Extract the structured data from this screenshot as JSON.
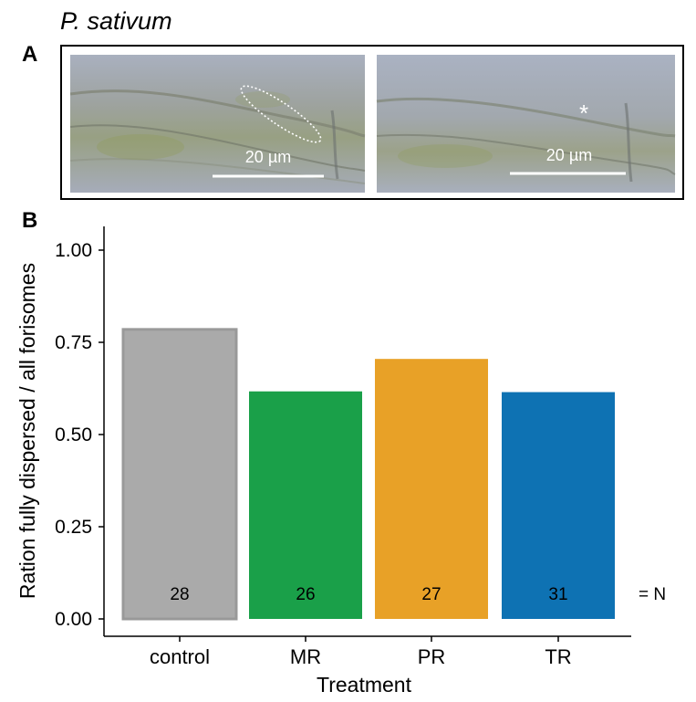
{
  "header": {
    "species": "P. sativum",
    "panel_a": "A",
    "panel_b": "B"
  },
  "micrographs": [
    {
      "scalebar_label": "20 µm",
      "annotation": ""
    },
    {
      "scalebar_label": "20 µm",
      "annotation": "*"
    }
  ],
  "chart_data": {
    "type": "bar",
    "categories": [
      "control",
      "MR",
      "PR",
      "TR"
    ],
    "values": [
      0.785,
      0.617,
      0.705,
      0.615
    ],
    "bar_counts": [
      "28",
      "26",
      "27",
      "31"
    ],
    "count_suffix": "= N",
    "colors": [
      "#aaaaaa",
      "#1aa049",
      "#e8a127",
      "#0e72b3"
    ],
    "title": "",
    "xlabel": "Treatment",
    "ylabel": "Ration fully dispersed / all forisomes",
    "ylim": [
      0,
      1
    ],
    "yticks": [
      "0.00",
      "0.25",
      "0.50",
      "0.75",
      "1.00"
    ],
    "grid": false,
    "legend": "none"
  }
}
